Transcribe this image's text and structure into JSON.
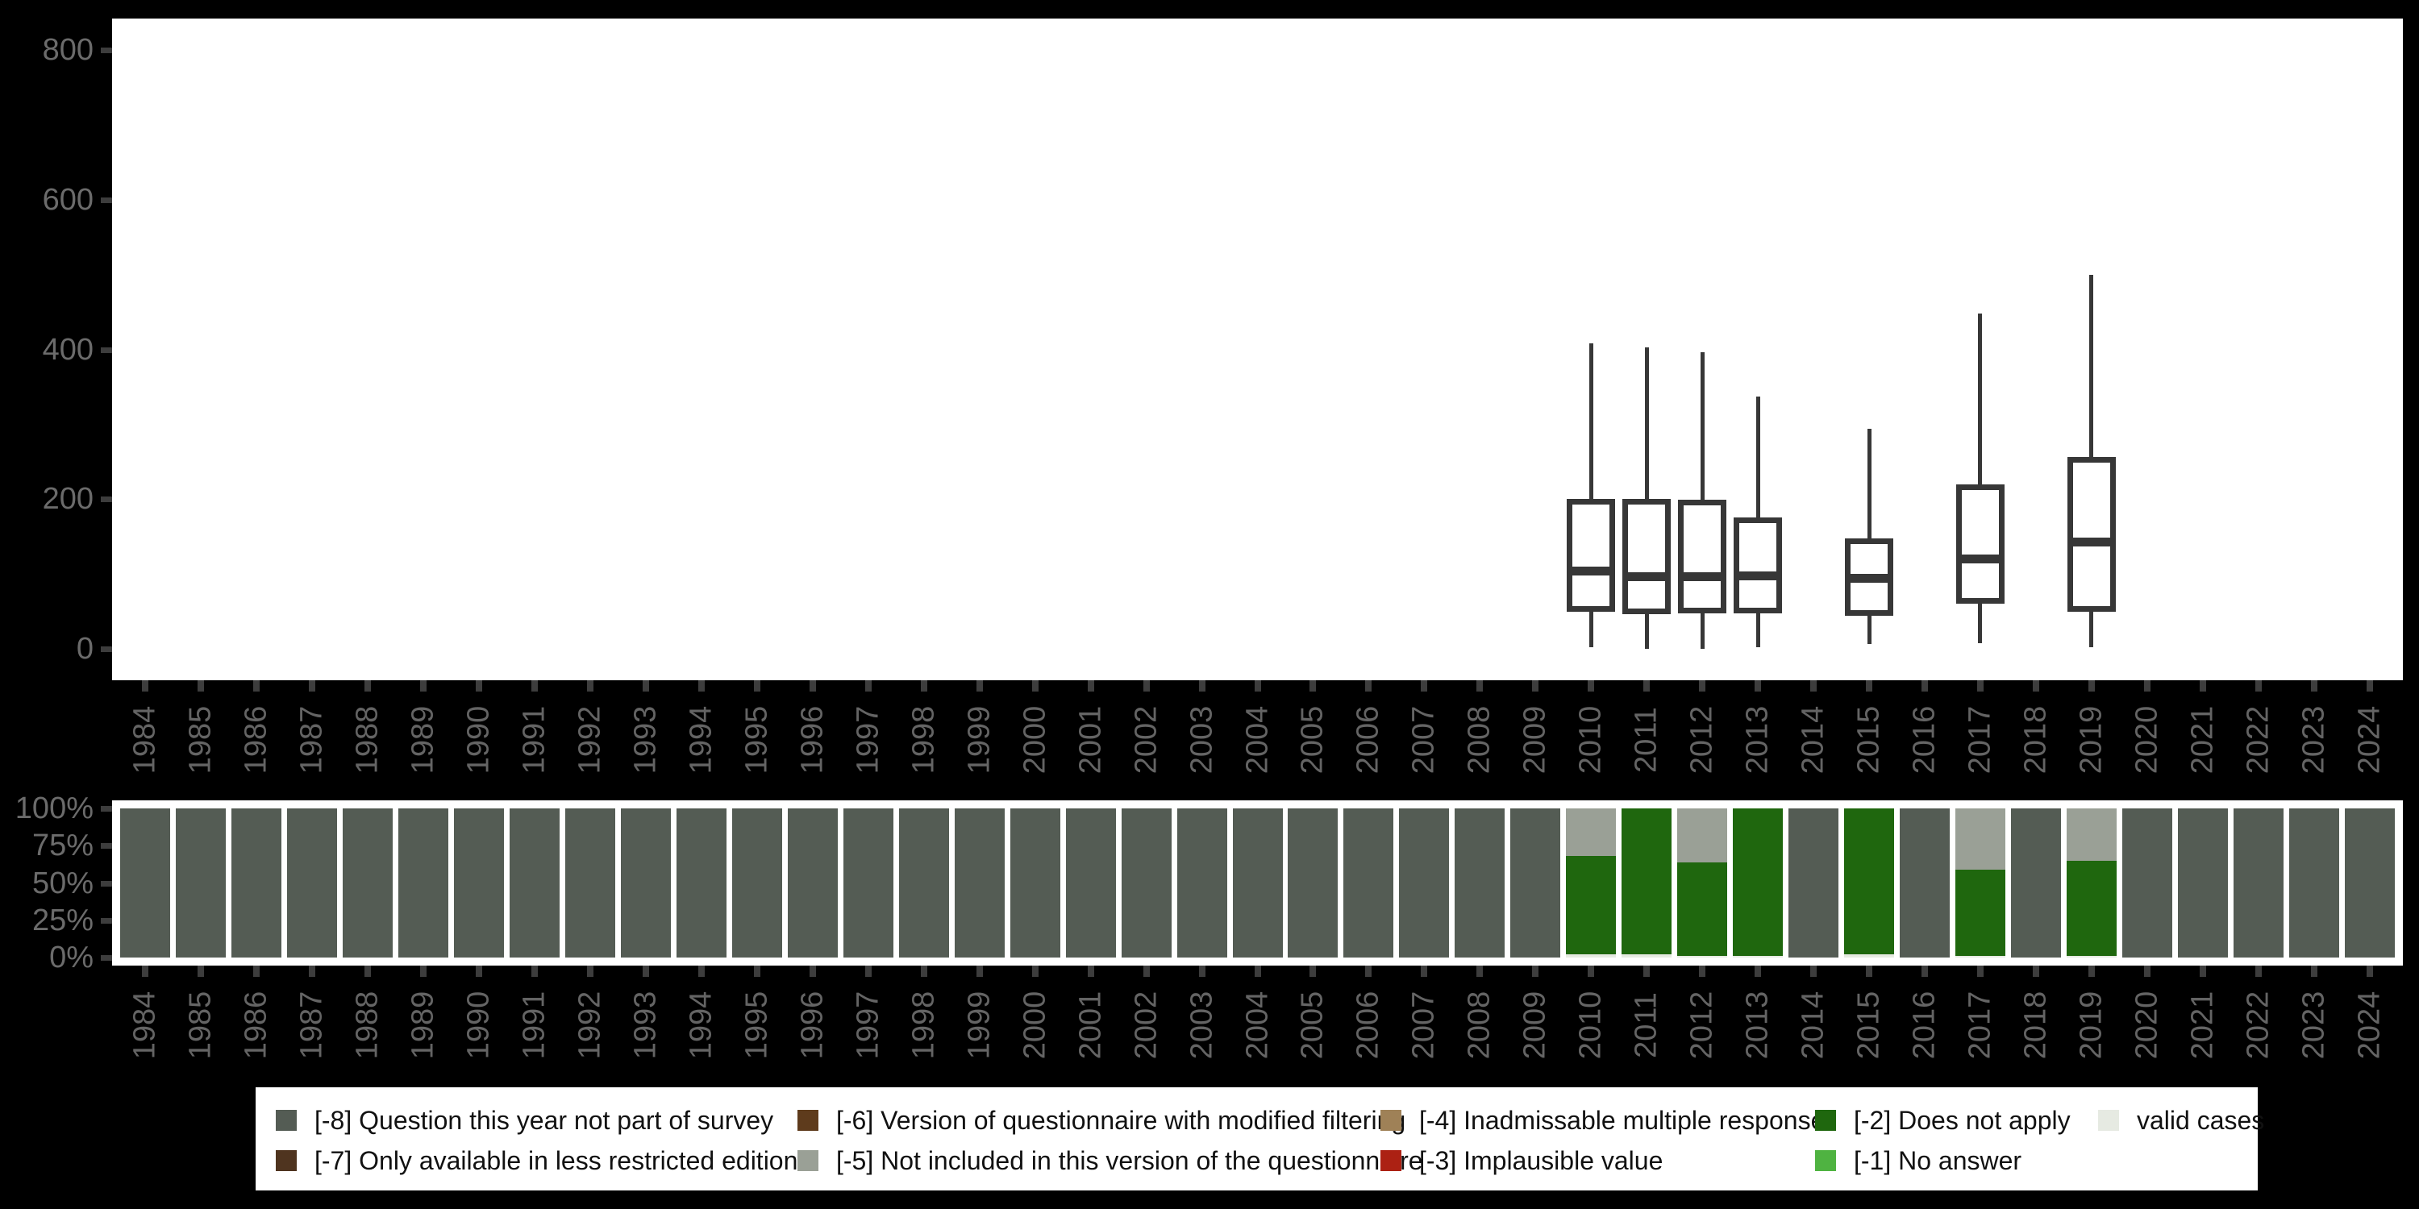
{
  "colors": {
    "background": "#000000",
    "plot_bg": "#ffffff",
    "axis_text": "#6b6b6b",
    "tick_mark": "#3d3d3d",
    "box_stroke": "#373737",
    "legend_bg": "#ffffff",
    "legend_text": "#111111"
  },
  "palette": {
    "-8": "#545c54",
    "-7": "#4f341f",
    "-6": "#5e3b1c",
    "-5": "#9aa096",
    "-4": "#9f8157",
    "-3": "#ac2113",
    "-2": "#1f670e",
    "-1": "#4fb341",
    "valid": "#e6eae2"
  },
  "chart_data": [
    {
      "type": "boxplot",
      "title": "",
      "xlabel": "",
      "ylabel": "",
      "grid": false,
      "legend_position": "bottom",
      "ylim": [
        0,
        860
      ],
      "yticks": [
        {
          "label": "0",
          "value": 0
        },
        {
          "label": "200",
          "value": 200
        },
        {
          "label": "400",
          "value": 400
        },
        {
          "label": "600",
          "value": 600
        },
        {
          "label": "800",
          "value": 800
        }
      ],
      "x_labels": [
        "1984",
        "1985",
        "1986",
        "1987",
        "1988",
        "1989",
        "1990",
        "1991",
        "1992",
        "1993",
        "1994",
        "1995",
        "1996",
        "1997",
        "1998",
        "1999",
        "2000",
        "2001",
        "2002",
        "2003",
        "2004",
        "2005",
        "2006",
        "2007",
        "2008",
        "2009",
        "2010",
        "2011",
        "2012",
        "2013",
        "2014",
        "2015",
        "2016",
        "2017",
        "2018",
        "2019",
        "2020",
        "2021",
        "2022",
        "2023",
        "2024"
      ],
      "boxes": [
        {
          "year": "2010",
          "min": 2,
          "q1": 50,
          "median": 104,
          "q3": 200,
          "max": 408
        },
        {
          "year": "2011",
          "min": 0,
          "q1": 46,
          "median": 96,
          "q3": 200,
          "max": 403
        },
        {
          "year": "2012",
          "min": 0,
          "q1": 47,
          "median": 96,
          "q3": 199,
          "max": 396
        },
        {
          "year": "2013",
          "min": 2,
          "q1": 47,
          "median": 97,
          "q3": 175,
          "max": 337
        },
        {
          "year": "2015",
          "min": 6,
          "q1": 44,
          "median": 94,
          "q3": 147,
          "max": 294
        },
        {
          "year": "2017",
          "min": 8,
          "q1": 60,
          "median": 120,
          "q3": 220,
          "max": 448
        },
        {
          "year": "2019",
          "min": 2,
          "q1": 50,
          "median": 143,
          "q3": 256,
          "max": 500
        }
      ]
    },
    {
      "type": "stacked-bar-percent",
      "title": "",
      "xlabel": "",
      "ylabel": "",
      "grid": false,
      "ylim": [
        0,
        100
      ],
      "yticks": [
        {
          "label": "0%",
          "value": 0
        },
        {
          "label": "25%",
          "value": 25
        },
        {
          "label": "50%",
          "value": 50
        },
        {
          "label": "75%",
          "value": 75
        },
        {
          "label": "100%",
          "value": 100
        }
      ],
      "x_labels": [
        "1984",
        "1985",
        "1986",
        "1987",
        "1988",
        "1989",
        "1990",
        "1991",
        "1992",
        "1993",
        "1994",
        "1995",
        "1996",
        "1997",
        "1998",
        "1999",
        "2000",
        "2001",
        "2002",
        "2003",
        "2004",
        "2005",
        "2006",
        "2007",
        "2008",
        "2009",
        "2010",
        "2011",
        "2012",
        "2013",
        "2014",
        "2015",
        "2016",
        "2017",
        "2018",
        "2019",
        "2020",
        "2021",
        "2022",
        "2023",
        "2024"
      ],
      "bars": [
        {
          "year": "1984",
          "segments": [
            {
              "key": "-8",
              "pct": 100
            }
          ]
        },
        {
          "year": "1985",
          "segments": [
            {
              "key": "-8",
              "pct": 100
            }
          ]
        },
        {
          "year": "1986",
          "segments": [
            {
              "key": "-8",
              "pct": 100
            }
          ]
        },
        {
          "year": "1987",
          "segments": [
            {
              "key": "-8",
              "pct": 100
            }
          ]
        },
        {
          "year": "1988",
          "segments": [
            {
              "key": "-8",
              "pct": 100
            }
          ]
        },
        {
          "year": "1989",
          "segments": [
            {
              "key": "-8",
              "pct": 100
            }
          ]
        },
        {
          "year": "1990",
          "segments": [
            {
              "key": "-8",
              "pct": 100
            }
          ]
        },
        {
          "year": "1991",
          "segments": [
            {
              "key": "-8",
              "pct": 100
            }
          ]
        },
        {
          "year": "1992",
          "segments": [
            {
              "key": "-8",
              "pct": 100
            }
          ]
        },
        {
          "year": "1993",
          "segments": [
            {
              "key": "-8",
              "pct": 100
            }
          ]
        },
        {
          "year": "1994",
          "segments": [
            {
              "key": "-8",
              "pct": 100
            }
          ]
        },
        {
          "year": "1995",
          "segments": [
            {
              "key": "-8",
              "pct": 100
            }
          ]
        },
        {
          "year": "1996",
          "segments": [
            {
              "key": "-8",
              "pct": 100
            }
          ]
        },
        {
          "year": "1997",
          "segments": [
            {
              "key": "-8",
              "pct": 100
            }
          ]
        },
        {
          "year": "1998",
          "segments": [
            {
              "key": "-8",
              "pct": 100
            }
          ]
        },
        {
          "year": "1999",
          "segments": [
            {
              "key": "-8",
              "pct": 100
            }
          ]
        },
        {
          "year": "2000",
          "segments": [
            {
              "key": "-8",
              "pct": 100
            }
          ]
        },
        {
          "year": "2001",
          "segments": [
            {
              "key": "-8",
              "pct": 100
            }
          ]
        },
        {
          "year": "2002",
          "segments": [
            {
              "key": "-8",
              "pct": 100
            }
          ]
        },
        {
          "year": "2003",
          "segments": [
            {
              "key": "-8",
              "pct": 100
            }
          ]
        },
        {
          "year": "2004",
          "segments": [
            {
              "key": "-8",
              "pct": 100
            }
          ]
        },
        {
          "year": "2005",
          "segments": [
            {
              "key": "-8",
              "pct": 100
            }
          ]
        },
        {
          "year": "2006",
          "segments": [
            {
              "key": "-8",
              "pct": 100
            }
          ]
        },
        {
          "year": "2007",
          "segments": [
            {
              "key": "-8",
              "pct": 100
            }
          ]
        },
        {
          "year": "2008",
          "segments": [
            {
              "key": "-8",
              "pct": 100
            }
          ]
        },
        {
          "year": "2009",
          "segments": [
            {
              "key": "-8",
              "pct": 100
            }
          ]
        },
        {
          "year": "2010",
          "segments": [
            {
              "key": "valid",
              "pct": 2
            },
            {
              "key": "-2",
              "pct": 66
            },
            {
              "key": "-5",
              "pct": 32
            }
          ]
        },
        {
          "year": "2011",
          "segments": [
            {
              "key": "valid",
              "pct": 2
            },
            {
              "key": "-2",
              "pct": 98
            }
          ]
        },
        {
          "year": "2012",
          "segments": [
            {
              "key": "valid",
              "pct": 1
            },
            {
              "key": "-2",
              "pct": 63
            },
            {
              "key": "-5",
              "pct": 36
            }
          ]
        },
        {
          "year": "2013",
          "segments": [
            {
              "key": "valid",
              "pct": 1
            },
            {
              "key": "-2",
              "pct": 99
            }
          ]
        },
        {
          "year": "2014",
          "segments": [
            {
              "key": "-8",
              "pct": 100
            }
          ]
        },
        {
          "year": "2015",
          "segments": [
            {
              "key": "valid",
              "pct": 2
            },
            {
              "key": "-2",
              "pct": 98
            }
          ]
        },
        {
          "year": "2016",
          "segments": [
            {
              "key": "-8",
              "pct": 100
            }
          ]
        },
        {
          "year": "2017",
          "segments": [
            {
              "key": "valid",
              "pct": 1
            },
            {
              "key": "-2",
              "pct": 58
            },
            {
              "key": "-5",
              "pct": 41
            }
          ]
        },
        {
          "year": "2018",
          "segments": [
            {
              "key": "-8",
              "pct": 100
            }
          ]
        },
        {
          "year": "2019",
          "segments": [
            {
              "key": "valid",
              "pct": 1
            },
            {
              "key": "-2",
              "pct": 64
            },
            {
              "key": "-5",
              "pct": 35
            }
          ]
        },
        {
          "year": "2020",
          "segments": [
            {
              "key": "-8",
              "pct": 100
            }
          ]
        },
        {
          "year": "2021",
          "segments": [
            {
              "key": "-8",
              "pct": 100
            }
          ]
        },
        {
          "year": "2022",
          "segments": [
            {
              "key": "-8",
              "pct": 100
            }
          ]
        },
        {
          "year": "2023",
          "segments": [
            {
              "key": "-8",
              "pct": 100
            }
          ]
        },
        {
          "year": "2024",
          "segments": [
            {
              "key": "-8",
              "pct": 100
            }
          ]
        }
      ]
    }
  ],
  "legend": {
    "columns": [
      [
        {
          "key": "-8",
          "label": "[-8] Question this year not part of survey"
        },
        {
          "key": "-7",
          "label": "[-7] Only available in less restricted edition"
        }
      ],
      [
        {
          "key": "-6",
          "label": "[-6] Version of questionnaire with modified filtering"
        },
        {
          "key": "-5",
          "label": "[-5] Not included in this version of the questionnaire"
        }
      ],
      [
        {
          "key": "-4",
          "label": "[-4] Inadmissable multiple response"
        },
        {
          "key": "-3",
          "label": "[-3] Implausible value"
        }
      ],
      [
        {
          "key": "-2",
          "label": "[-2] Does not apply"
        },
        {
          "key": "-1",
          "label": "[-1] No answer"
        }
      ],
      [
        {
          "key": "valid",
          "label": "valid cases"
        }
      ]
    ]
  }
}
